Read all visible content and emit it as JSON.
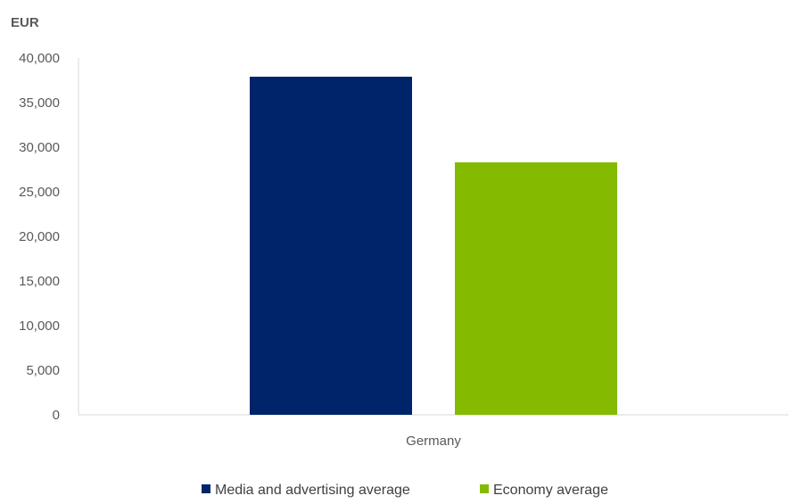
{
  "chart_data": {
    "type": "bar",
    "title": "",
    "ylabel": "EUR",
    "xlabel": "",
    "categories": [
      "Germany"
    ],
    "series": [
      {
        "name": "Media and advertising average",
        "color": "#002469",
        "values": [
          37900
        ]
      },
      {
        "name": "Economy average",
        "color": "#84BA00",
        "values": [
          28300
        ]
      }
    ],
    "ylim": [
      0,
      40000
    ],
    "yticks": [
      0,
      5000,
      10000,
      15000,
      20000,
      25000,
      30000,
      35000,
      40000
    ],
    "ytick_labels": [
      "0",
      "5,000",
      "10,000",
      "15,000",
      "20,000",
      "25,000",
      "30,000",
      "35,000",
      "40,000"
    ],
    "grid": false,
    "legend_position": "bottom"
  }
}
